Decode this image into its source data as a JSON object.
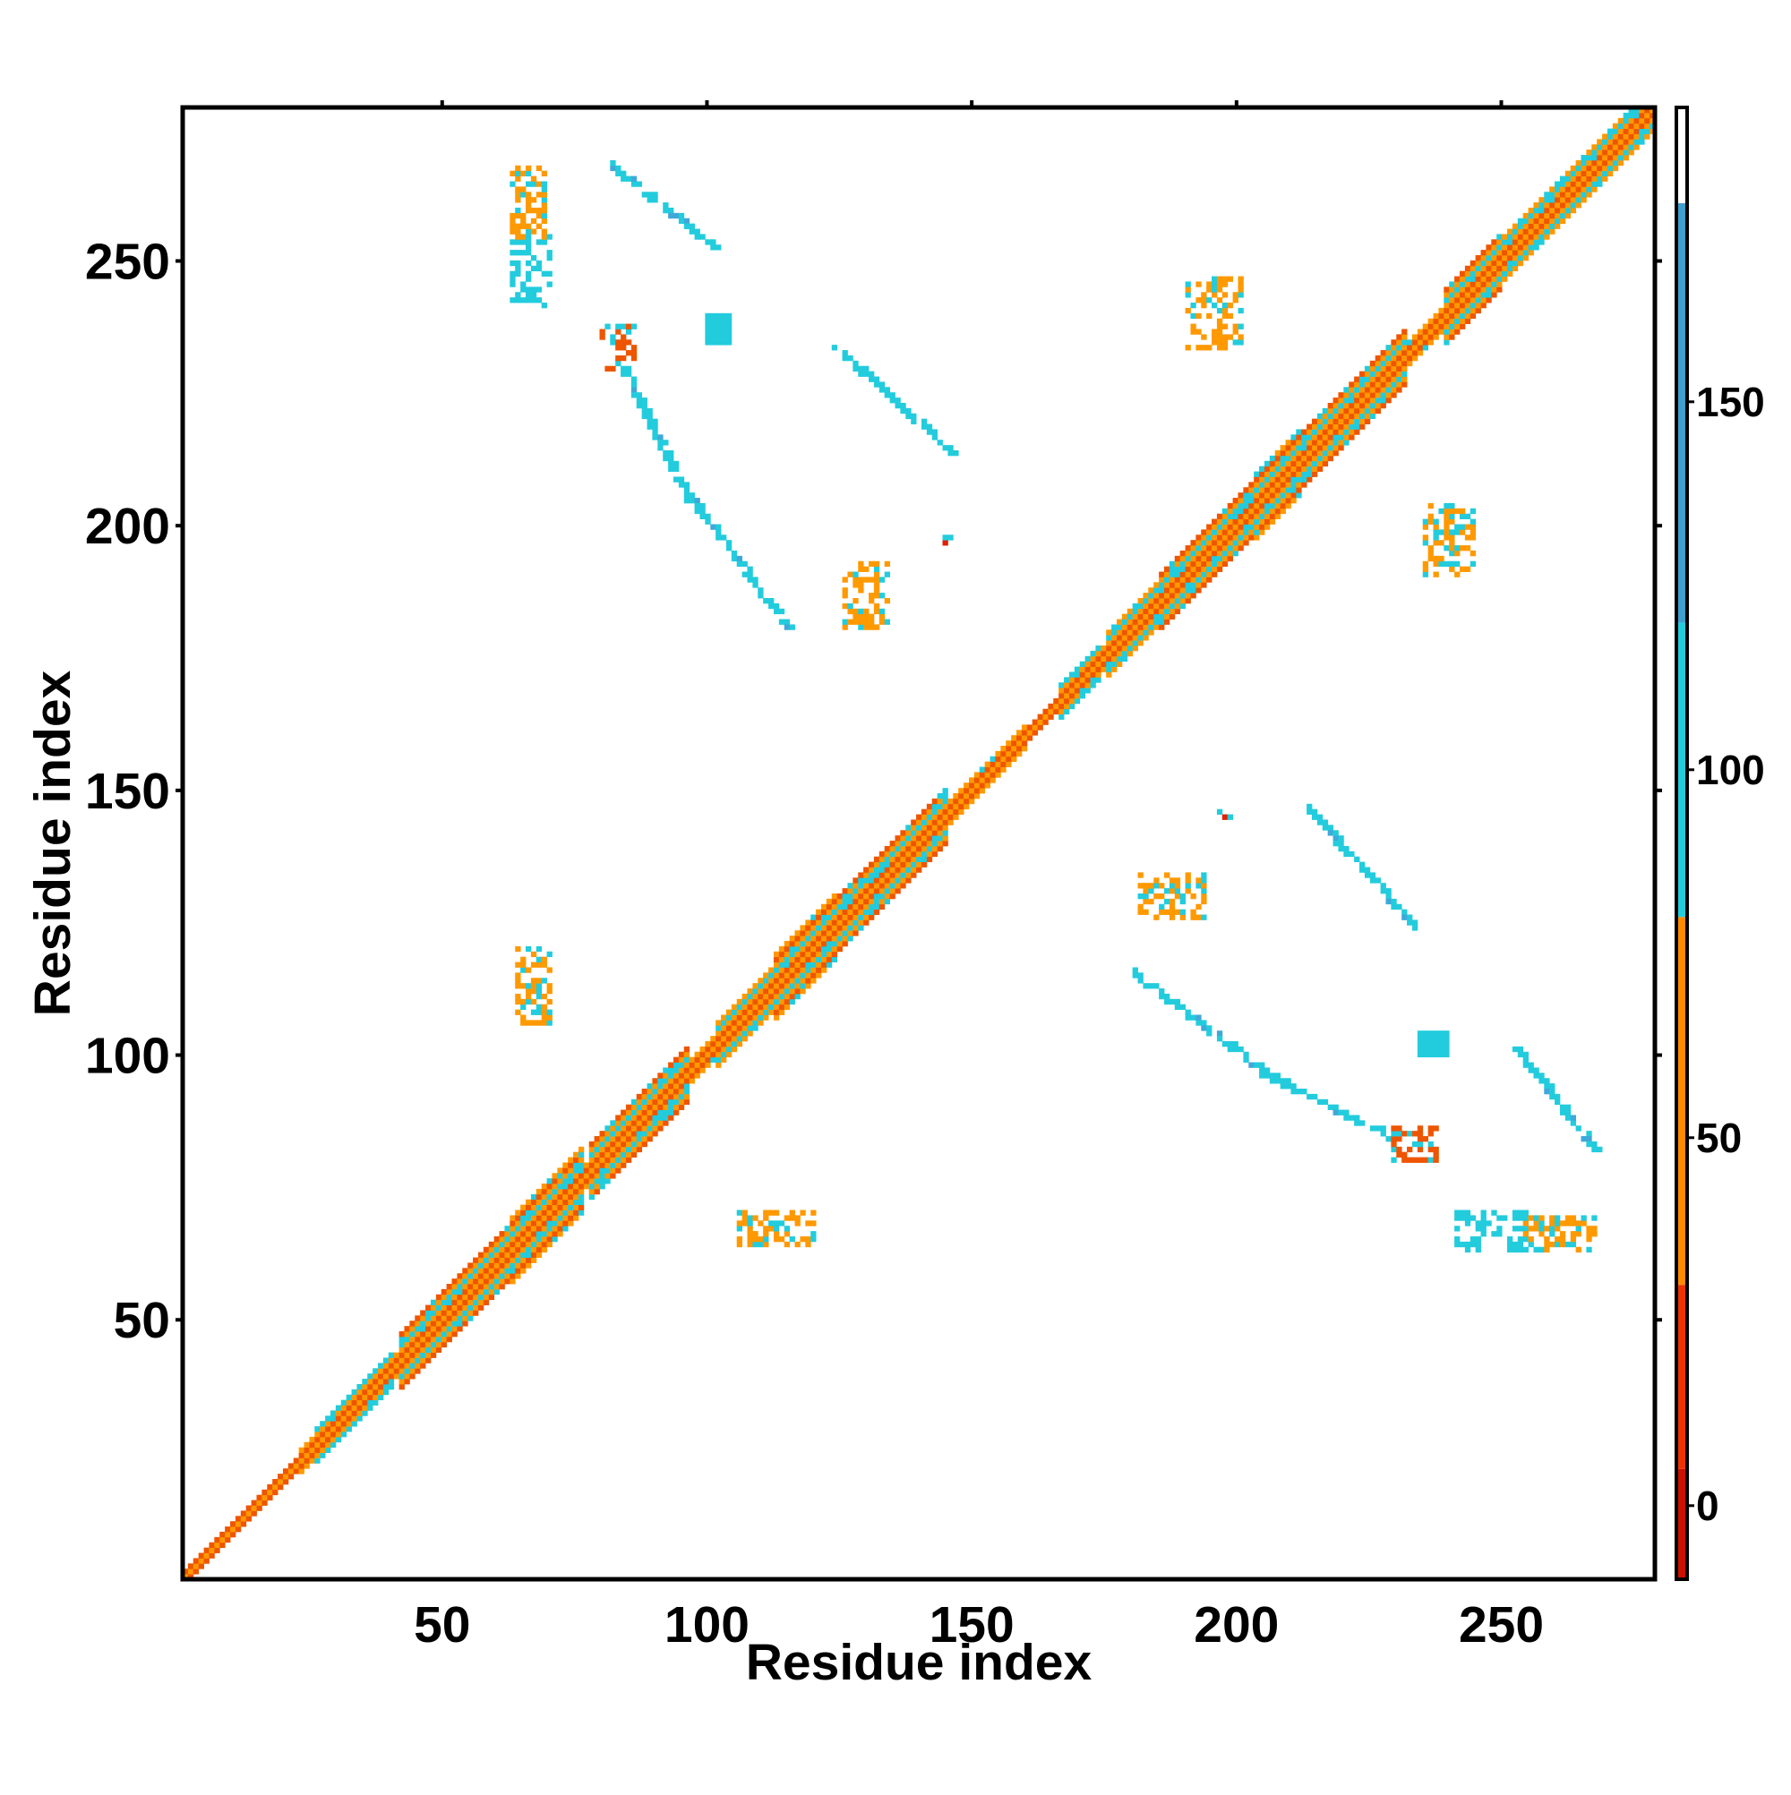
{
  "chart_data": {
    "type": "heatmap",
    "title": "",
    "xlabel": "Residue index",
    "ylabel": "Residue index",
    "xlim": [
      1,
      279
    ],
    "ylim": [
      1,
      279
    ],
    "x_ticks": [
      50,
      100,
      150,
      200,
      250
    ],
    "y_ticks": [
      50,
      100,
      150,
      200,
      250
    ],
    "grid": false,
    "colorbar": {
      "min": -10,
      "max": 190,
      "ticks": [
        0,
        50,
        100,
        150
      ],
      "segments": [
        {
          "from": -10,
          "to": 5,
          "color": "#cc1100"
        },
        {
          "from": 5,
          "to": 30,
          "color": "#ee3300"
        },
        {
          "from": 30,
          "to": 80,
          "color": "#ff8a00"
        },
        {
          "from": 80,
          "to": 120,
          "color": "#22ccdd"
        },
        {
          "from": 120,
          "to": 177,
          "color": "#3f9fcf"
        },
        {
          "from": 177,
          "to": 190,
          "color": "#ffffff"
        }
      ]
    },
    "value_colors": {
      "red": "#e02000",
      "orange_red": "#ee5500",
      "orange": "#ff9900",
      "cyan": "#22ccdd",
      "light_blue": "#40a8d8"
    },
    "diagonal": {
      "from": 1,
      "to": 279,
      "band_pattern": [
        "orange",
        "orange_red",
        "orange",
        "cyan"
      ],
      "helix_segments": [
        [
          1,
          22,
          1
        ],
        [
          26,
          40,
          3
        ],
        [
          42,
          62,
          5
        ],
        [
          62,
          76,
          6
        ],
        [
          78,
          96,
          5
        ],
        [
          102,
          112,
          4
        ],
        [
          112,
          124,
          6
        ],
        [
          124,
          145,
          5
        ],
        [
          148,
          160,
          2
        ],
        [
          160,
          166,
          1
        ],
        [
          166,
          174,
          3
        ],
        [
          176,
          185,
          4
        ],
        [
          186,
          203,
          5
        ],
        [
          203,
          212,
          6
        ],
        [
          212,
          232,
          5
        ],
        [
          240,
          250,
          5
        ],
        [
          250,
          279,
          4
        ]
      ]
    },
    "off_diagonal_contacts": [
      {
        "x": [
          63,
          70
        ],
        "y": [
          242,
          256
        ],
        "color": "cyan"
      },
      {
        "x": [
          63,
          69
        ],
        "y": [
          255,
          268
        ],
        "color": "orange"
      },
      {
        "x": [
          82,
          101
        ],
        "y": [
          253,
          268
        ],
        "color": "cyan",
        "kind": "line"
      },
      {
        "x": [
          80,
          86
        ],
        "y": [
          230,
          238
        ],
        "color": "orange_red"
      },
      {
        "x": [
          84,
          96
        ],
        "y": [
          205,
          230
        ],
        "color": "cyan",
        "kind": "line"
      },
      {
        "x": [
          96,
          115
        ],
        "y": [
          181,
          206
        ],
        "color": "cyan",
        "kind": "line"
      },
      {
        "x": [
          100,
          104
        ],
        "y": [
          235,
          240
        ],
        "color": "cyan",
        "kind": "blob"
      },
      {
        "x": [
          124,
          146
        ],
        "y": [
          214,
          234
        ],
        "color": "cyan",
        "kind": "line"
      },
      {
        "x": [
          126,
          134
        ],
        "y": [
          181,
          193
        ],
        "color": "orange"
      },
      {
        "x": [
          191,
          201
        ],
        "y": [
          234,
          247
        ],
        "color": "orange"
      },
      {
        "x": [
          236,
          245
        ],
        "y": [
          191,
          204
        ],
        "color": "orange"
      },
      {
        "x": [
          214,
          234
        ],
        "y": [
          124,
          146
        ],
        "color": "cyan",
        "kind": "line"
      },
      {
        "x": [
          182,
          194
        ],
        "y": [
          126,
          134
        ],
        "color": "orange"
      },
      {
        "x": [
          181,
          206
        ],
        "y": [
          96,
          115
        ],
        "color": "cyan",
        "kind": "line"
      },
      {
        "x": [
          205,
          230
        ],
        "y": [
          84,
          96
        ],
        "color": "cyan",
        "kind": "line"
      },
      {
        "x": [
          230,
          238
        ],
        "y": [
          80,
          86
        ],
        "color": "orange_red"
      },
      {
        "x": [
          235,
          240
        ],
        "y": [
          100,
          104
        ],
        "color": "cyan",
        "kind": "blob"
      },
      {
        "x": [
          253,
          268
        ],
        "y": [
          82,
          101
        ],
        "color": "cyan",
        "kind": "line"
      },
      {
        "x": [
          242,
          256
        ],
        "y": [
          63,
          70
        ],
        "color": "cyan"
      },
      {
        "x": [
          255,
          268
        ],
        "y": [
          63,
          69
        ],
        "color": "orange"
      },
      {
        "x": [
          64,
          70
        ],
        "y": [
          106,
          120
        ],
        "color": "orange"
      },
      {
        "x": [
          106,
          120
        ],
        "y": [
          64,
          70
        ],
        "color": "orange"
      },
      {
        "x": [
          197,
          199
        ],
        "y": [
          144,
          146
        ],
        "color": "red"
      },
      {
        "x": [
          144,
          146
        ],
        "y": [
          197,
          199
        ],
        "color": "red"
      }
    ]
  }
}
